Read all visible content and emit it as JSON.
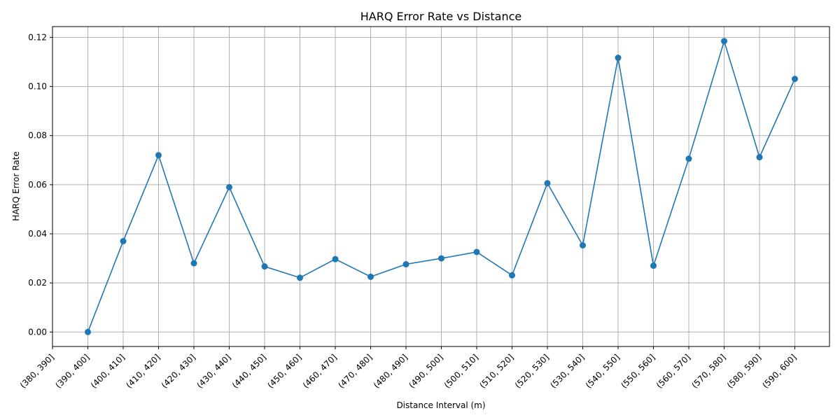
{
  "chart_data": {
    "type": "line",
    "title": "HARQ Error Rate vs Distance",
    "xlabel": "Distance Interval (m)",
    "ylabel": "HARQ Error Rate",
    "categories": [
      "(380, 390]",
      "(390, 400]",
      "(400, 410]",
      "(410, 420]",
      "(420, 430]",
      "(430, 440]",
      "(440, 450]",
      "(450, 460]",
      "(460, 470]",
      "(470, 480]",
      "(480, 490]",
      "(490, 500]",
      "(500, 510]",
      "(510, 520]",
      "(520, 530]",
      "(530, 540]",
      "(540, 550]",
      "(550, 560]",
      "(560, 570]",
      "(570, 580]",
      "(580, 590]",
      "(590, 600]"
    ],
    "values": [
      null,
      0.0,
      0.037,
      0.072,
      0.028,
      0.059,
      0.0267,
      0.0221,
      0.0297,
      0.0225,
      0.0276,
      0.03,
      0.0326,
      0.0231,
      0.0606,
      0.0353,
      0.1117,
      0.027,
      0.0706,
      0.1185,
      0.0712,
      0.1031
    ],
    "ylim": [
      -0.0059,
      0.1244
    ],
    "yticks": [
      "0.00",
      "0.02",
      "0.04",
      "0.06",
      "0.08",
      "0.10",
      "0.12"
    ],
    "ytick_values": [
      0,
      0.02,
      0.04,
      0.06,
      0.08,
      0.1,
      0.12
    ],
    "grid": true,
    "line_color": "#1f77b4",
    "marker": "circle"
  }
}
